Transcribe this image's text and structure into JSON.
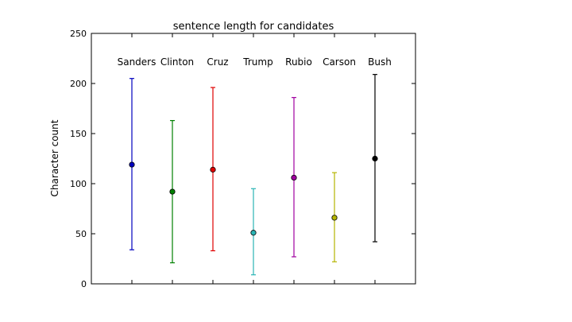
{
  "chart_data": {
    "type": "scatter",
    "title": "sentence length for candidates",
    "xlabel": "",
    "ylabel": "Character count",
    "ylim": [
      0,
      250
    ],
    "yticks": [
      0,
      50,
      100,
      150,
      200,
      250
    ],
    "grid": false,
    "categories": [
      "Sanders",
      "Clinton",
      "Cruz",
      "Trump",
      "Rubio",
      "Carson",
      "Bush"
    ],
    "series": [
      {
        "category": "Sanders",
        "mean": 119,
        "low": 34,
        "high": 205,
        "color": "#0000bf"
      },
      {
        "category": "Clinton",
        "mean": 92,
        "low": 21,
        "high": 163,
        "color": "#008000"
      },
      {
        "category": "Cruz",
        "mean": 114,
        "low": 33,
        "high": 196,
        "color": "#e00000"
      },
      {
        "category": "Trump",
        "mean": 51,
        "low": 9,
        "high": 95,
        "color": "#2ab5b5"
      },
      {
        "category": "Rubio",
        "mean": 106,
        "low": 27,
        "high": 186,
        "color": "#a000a0"
      },
      {
        "category": "Carson",
        "mean": 66,
        "low": 22,
        "high": 111,
        "color": "#b5b500"
      },
      {
        "category": "Bush",
        "mean": 125,
        "low": 42,
        "high": 209,
        "color": "#000000"
      }
    ]
  }
}
